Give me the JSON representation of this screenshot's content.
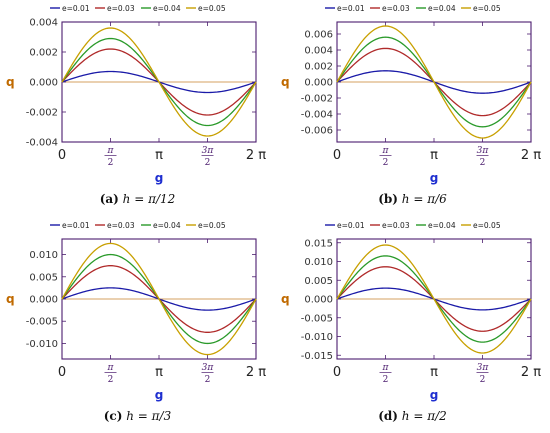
{
  "chart_data": [
    {
      "type": "line",
      "caption_label": "(a)",
      "caption_formula": "h = π/12",
      "ylabel": "q",
      "xlabel": "g",
      "xlim": [
        0,
        6.2832
      ],
      "ylim": [
        -0.004,
        0.004
      ],
      "x_ticks": [
        {
          "value": 0,
          "label": "0"
        },
        {
          "value": 1.5708,
          "label": "π/2"
        },
        {
          "value": 3.1416,
          "label": "π"
        },
        {
          "value": 4.7124,
          "label": "3π/2"
        },
        {
          "value": 6.2832,
          "label": "2 π"
        }
      ],
      "y_ticks": [
        {
          "value": 0.004,
          "label": "0.004"
        },
        {
          "value": 0.002,
          "label": "0.002"
        },
        {
          "value": 0,
          "label": "0.000"
        },
        {
          "value": -0.002,
          "label": "-0.002"
        },
        {
          "value": -0.004,
          "label": "-0.004"
        }
      ],
      "legend_position": "top",
      "series": [
        {
          "name": "e=0.01",
          "color": "#1a1aa8",
          "amplitude": 0.0007
        },
        {
          "name": "e=0.03",
          "color": "#b02a2a",
          "amplitude": 0.0022
        },
        {
          "name": "e=0.04",
          "color": "#2a9a2a",
          "amplitude": 0.0029
        },
        {
          "name": "e=0.05",
          "color": "#c8a000",
          "amplitude": 0.0036
        }
      ]
    },
    {
      "type": "line",
      "caption_label": "(b)",
      "caption_formula": "h = π/6",
      "ylabel": "q",
      "xlabel": "g",
      "xlim": [
        0,
        6.2832
      ],
      "ylim": [
        -0.0075,
        0.0075
      ],
      "x_ticks": [
        {
          "value": 0,
          "label": "0"
        },
        {
          "value": 1.5708,
          "label": "π/2"
        },
        {
          "value": 3.1416,
          "label": "π"
        },
        {
          "value": 4.7124,
          "label": "3π/2"
        },
        {
          "value": 6.2832,
          "label": "2 π"
        }
      ],
      "y_ticks": [
        {
          "value": 0.006,
          "label": "0.006"
        },
        {
          "value": 0.004,
          "label": "0.004"
        },
        {
          "value": 0.002,
          "label": "0.002"
        },
        {
          "value": 0,
          "label": "0.000"
        },
        {
          "value": -0.002,
          "label": "-0.002"
        },
        {
          "value": -0.004,
          "label": "-0.004"
        },
        {
          "value": -0.006,
          "label": "-0.006"
        }
      ],
      "legend_position": "top",
      "series": [
        {
          "name": "e=0.01",
          "color": "#1a1aa8",
          "amplitude": 0.0014
        },
        {
          "name": "e=0.03",
          "color": "#b02a2a",
          "amplitude": 0.0042
        },
        {
          "name": "e=0.04",
          "color": "#2a9a2a",
          "amplitude": 0.0056
        },
        {
          "name": "e=0.05",
          "color": "#c8a000",
          "amplitude": 0.007
        }
      ]
    },
    {
      "type": "line",
      "caption_label": "(c)",
      "caption_formula": "h = π/3",
      "ylabel": "q",
      "xlabel": "g",
      "xlim": [
        0,
        6.2832
      ],
      "ylim": [
        -0.0135,
        0.0135
      ],
      "x_ticks": [
        {
          "value": 0,
          "label": "0"
        },
        {
          "value": 1.5708,
          "label": "π/2"
        },
        {
          "value": 3.1416,
          "label": "π"
        },
        {
          "value": 4.7124,
          "label": "3π/2"
        },
        {
          "value": 6.2832,
          "label": "2 π"
        }
      ],
      "y_ticks": [
        {
          "value": 0.01,
          "label": "0.010"
        },
        {
          "value": 0.005,
          "label": "0.005"
        },
        {
          "value": 0,
          "label": "0.000"
        },
        {
          "value": -0.005,
          "label": "-0.005"
        },
        {
          "value": -0.01,
          "label": "-0.010"
        }
      ],
      "legend_position": "top",
      "series": [
        {
          "name": "e=0.01",
          "color": "#1a1aa8",
          "amplitude": 0.0025
        },
        {
          "name": "e=0.03",
          "color": "#b02a2a",
          "amplitude": 0.0075
        },
        {
          "name": "e=0.04",
          "color": "#2a9a2a",
          "amplitude": 0.01
        },
        {
          "name": "e=0.05",
          "color": "#c8a000",
          "amplitude": 0.0125
        }
      ]
    },
    {
      "type": "line",
      "caption_label": "(d)",
      "caption_formula": "h = π/2",
      "ylabel": "q",
      "xlabel": "g",
      "xlim": [
        0,
        6.2832
      ],
      "ylim": [
        -0.016,
        0.016
      ],
      "x_ticks": [
        {
          "value": 0,
          "label": "0"
        },
        {
          "value": 1.5708,
          "label": "π/2"
        },
        {
          "value": 3.1416,
          "label": "π"
        },
        {
          "value": 4.7124,
          "label": "3π/2"
        },
        {
          "value": 6.2832,
          "label": "2 π"
        }
      ],
      "y_ticks": [
        {
          "value": 0.015,
          "label": "0.015"
        },
        {
          "value": 0.01,
          "label": "0.010"
        },
        {
          "value": 0.005,
          "label": "0.005"
        },
        {
          "value": 0,
          "label": "0.000"
        },
        {
          "value": -0.005,
          "label": "-0.005"
        },
        {
          "value": -0.01,
          "label": "-0.010"
        },
        {
          "value": -0.015,
          "label": "-0.015"
        }
      ],
      "legend_position": "top",
      "series": [
        {
          "name": "e=0.01",
          "color": "#1a1aa8",
          "amplitude": 0.0029
        },
        {
          "name": "e=0.03",
          "color": "#b02a2a",
          "amplitude": 0.0086
        },
        {
          "name": "e=0.04",
          "color": "#2a9a2a",
          "amplitude": 0.0115
        },
        {
          "name": "e=0.05",
          "color": "#c8a000",
          "amplitude": 0.0144
        }
      ]
    }
  ],
  "colors": {
    "frame": "#4b1c6e",
    "tick_label": "#333333",
    "q_label": "#c06a00",
    "g_label": "#1f2fd0",
    "zero_line": "#d4a060"
  }
}
